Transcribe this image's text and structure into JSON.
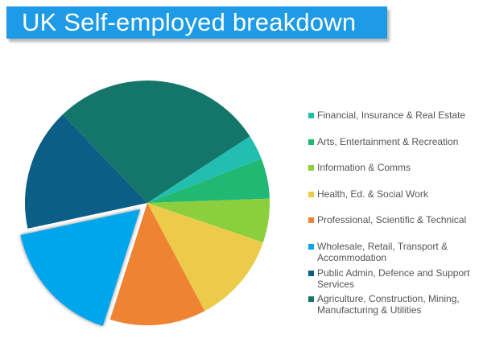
{
  "title": "UK Self-employed breakdown",
  "chart_data": {
    "type": "pie",
    "title": "UK Self-employed breakdown",
    "start_angle_deg": 57,
    "exploded_slice": "Wholesale, Retail, Transport & Accommodation",
    "series": [
      {
        "name": "Financial, Insurance & Real Estate",
        "value": 3.3,
        "color": "#22bfb0"
      },
      {
        "name": "Arts, Entertainment & Recreation",
        "value": 5.3,
        "color": "#20b872"
      },
      {
        "name": "Information & Comms",
        "value": 5.8,
        "color": "#8ccf3e"
      },
      {
        "name": "Health, Ed. & Social Work",
        "value": 12.0,
        "color": "#eccb4a"
      },
      {
        "name": "Professional, Scientific & Technical",
        "value": 12.7,
        "color": "#ee8433"
      },
      {
        "name": "Wholesale, Retail, Transport & Accommodation",
        "value": 16.7,
        "color": "#06a6ec"
      },
      {
        "name": "Public Admin, Defence and Support Services",
        "value": 16.2,
        "color": "#0b5e85"
      },
      {
        "name": "Agriculture, Construction, Mining, Manufacturing & Utilities",
        "value": 28.0,
        "color": "#14766b"
      }
    ],
    "legend_position": "right"
  }
}
